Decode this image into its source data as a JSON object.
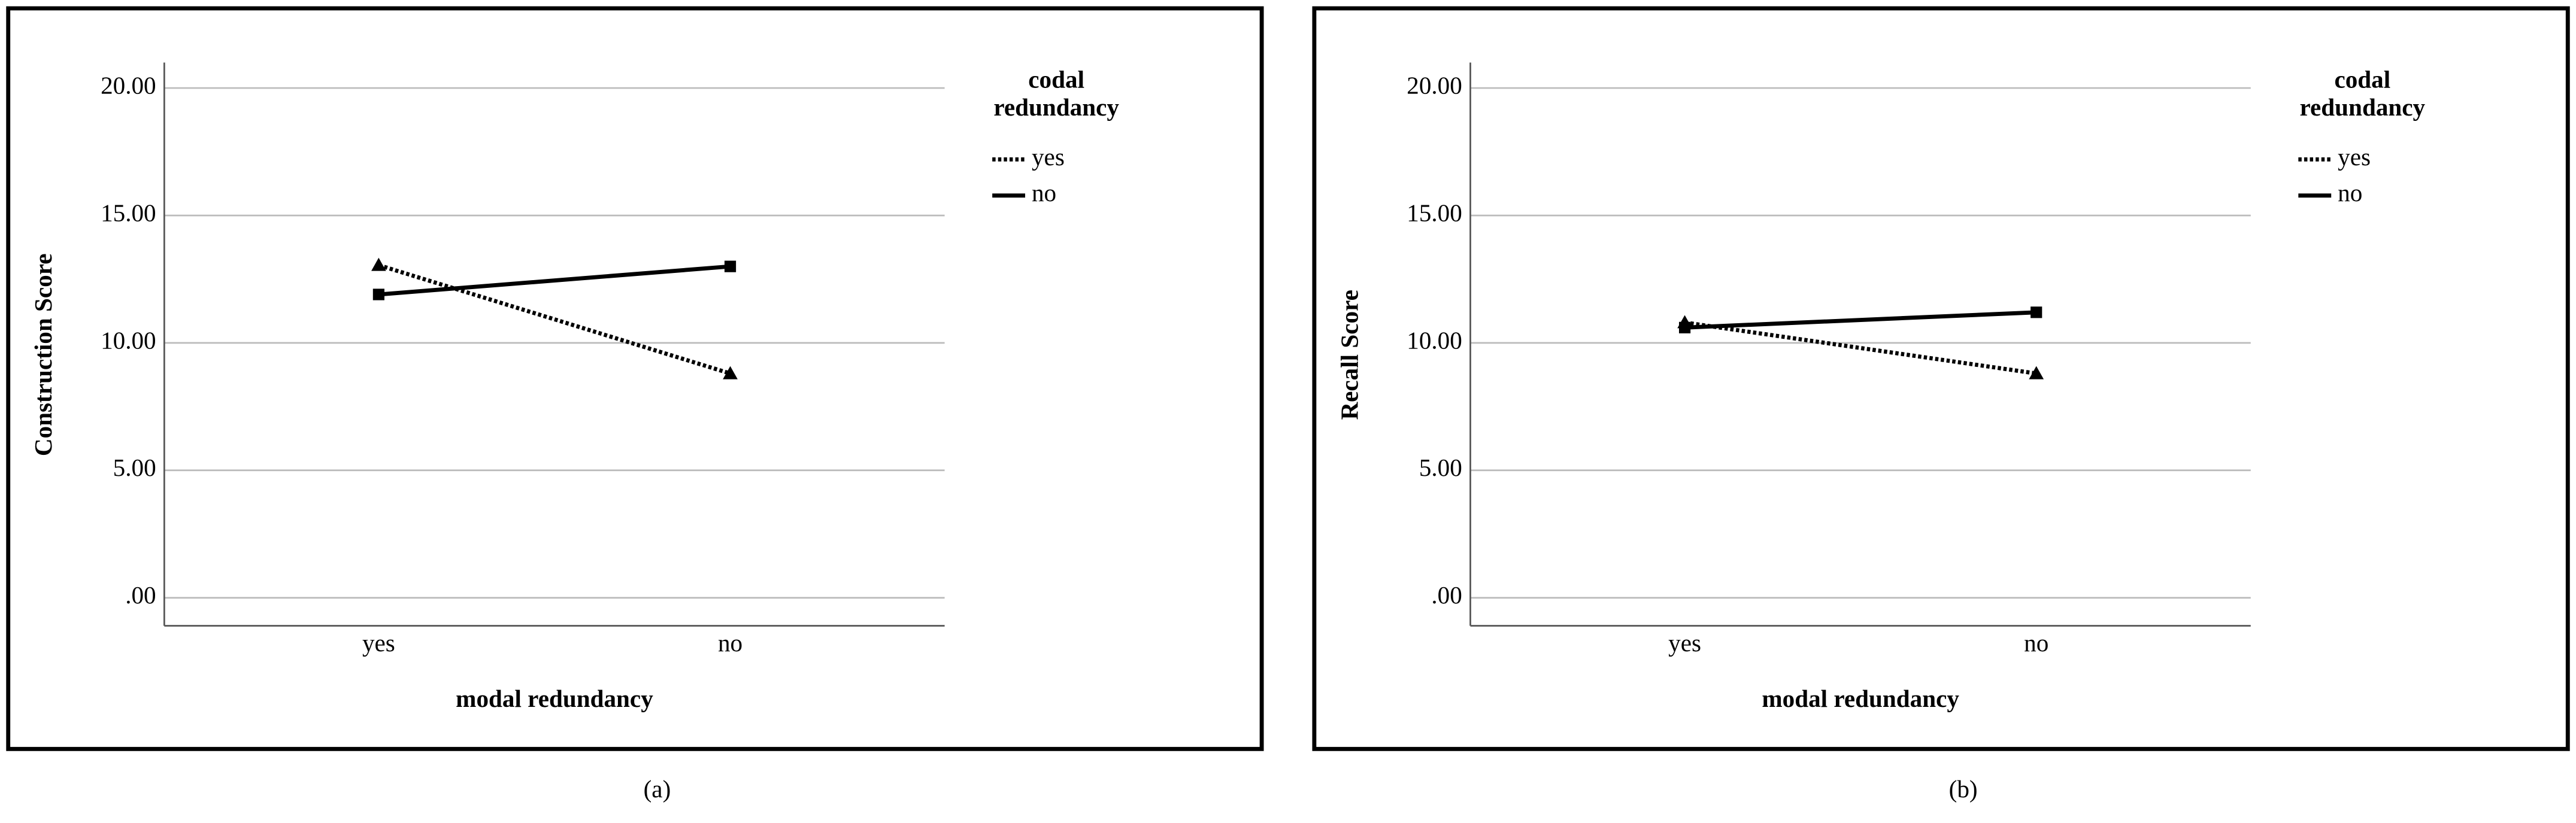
{
  "chart_data": [
    {
      "type": "line",
      "x_label": "modal redundancy",
      "y_label": "Construction Score",
      "legend_title": "codal redundancy",
      "caption": "(a)",
      "categories": [
        "yes",
        "no"
      ],
      "series": [
        {
          "name": "yes",
          "color": "#000000",
          "linestyle": "dotted",
          "marker": "triangle",
          "values": [
            13.05,
            8.8
          ]
        },
        {
          "name": "no",
          "color": "#000000",
          "linestyle": "solid",
          "marker": "square",
          "values": [
            11.9,
            13.0
          ]
        }
      ],
      "ylim": [
        -1.1,
        21.0
      ],
      "yticks": [
        {
          "value": 0,
          "label": ".00"
        },
        {
          "value": 5,
          "label": "5.00"
        },
        {
          "value": 10,
          "label": "10.00"
        },
        {
          "value": 15,
          "label": "15.00"
        },
        {
          "value": 20,
          "label": "20.00"
        }
      ],
      "grid": true
    },
    {
      "type": "line",
      "x_label": "modal redundancy",
      "y_label": "Recall Score",
      "legend_title": "codal redundancy",
      "caption": "(b)",
      "categories": [
        "yes",
        "no"
      ],
      "series": [
        {
          "name": "yes",
          "color": "#000000",
          "linestyle": "dotted",
          "marker": "triangle",
          "values": [
            10.8,
            8.8
          ]
        },
        {
          "name": "no",
          "color": "#000000",
          "linestyle": "solid",
          "marker": "square",
          "values": [
            10.6,
            11.2
          ]
        }
      ],
      "ylim": [
        -1.1,
        21.0
      ],
      "yticks": [
        {
          "value": 0,
          "label": ".00"
        },
        {
          "value": 5,
          "label": "5.00"
        },
        {
          "value": 10,
          "label": "10.00"
        },
        {
          "value": 15,
          "label": "15.00"
        },
        {
          "value": 20,
          "label": "20.00"
        }
      ],
      "grid": true
    }
  ]
}
